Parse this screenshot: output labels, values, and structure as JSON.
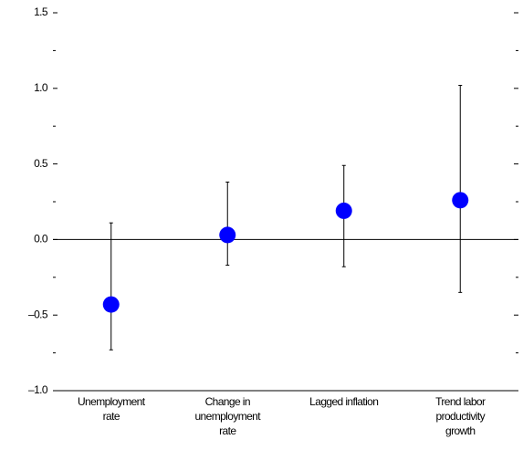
{
  "chart_data": {
    "type": "dot-errorbar",
    "categories": [
      [
        "Unemployment",
        "rate"
      ],
      [
        "Change in",
        "unemployment",
        "rate"
      ],
      [
        "Lagged inflation"
      ],
      [
        "Trend labor",
        "productivity",
        "growth"
      ]
    ],
    "values": [
      -0.43,
      0.03,
      0.19,
      0.26
    ],
    "low": [
      -0.73,
      -0.17,
      -0.18,
      -0.35
    ],
    "high": [
      0.11,
      0.38,
      0.49,
      1.02
    ],
    "color": "#0000ff",
    "ylim": [
      -1.0,
      1.5
    ],
    "yticks": [
      {
        "value": 1.5,
        "label": "1.5"
      },
      {
        "value": 1.0,
        "label": "1.0"
      },
      {
        "value": 0.5,
        "label": "0.5"
      },
      {
        "value": 0,
        "label": "0.0"
      },
      {
        "value": -0.5,
        "label": "–0.5"
      },
      {
        "value": -1.0,
        "label": "–1.0"
      }
    ],
    "yminorticks": [
      1.25,
      0.75,
      0.25,
      -0.25,
      -0.75
    ],
    "zero_line": true
  }
}
